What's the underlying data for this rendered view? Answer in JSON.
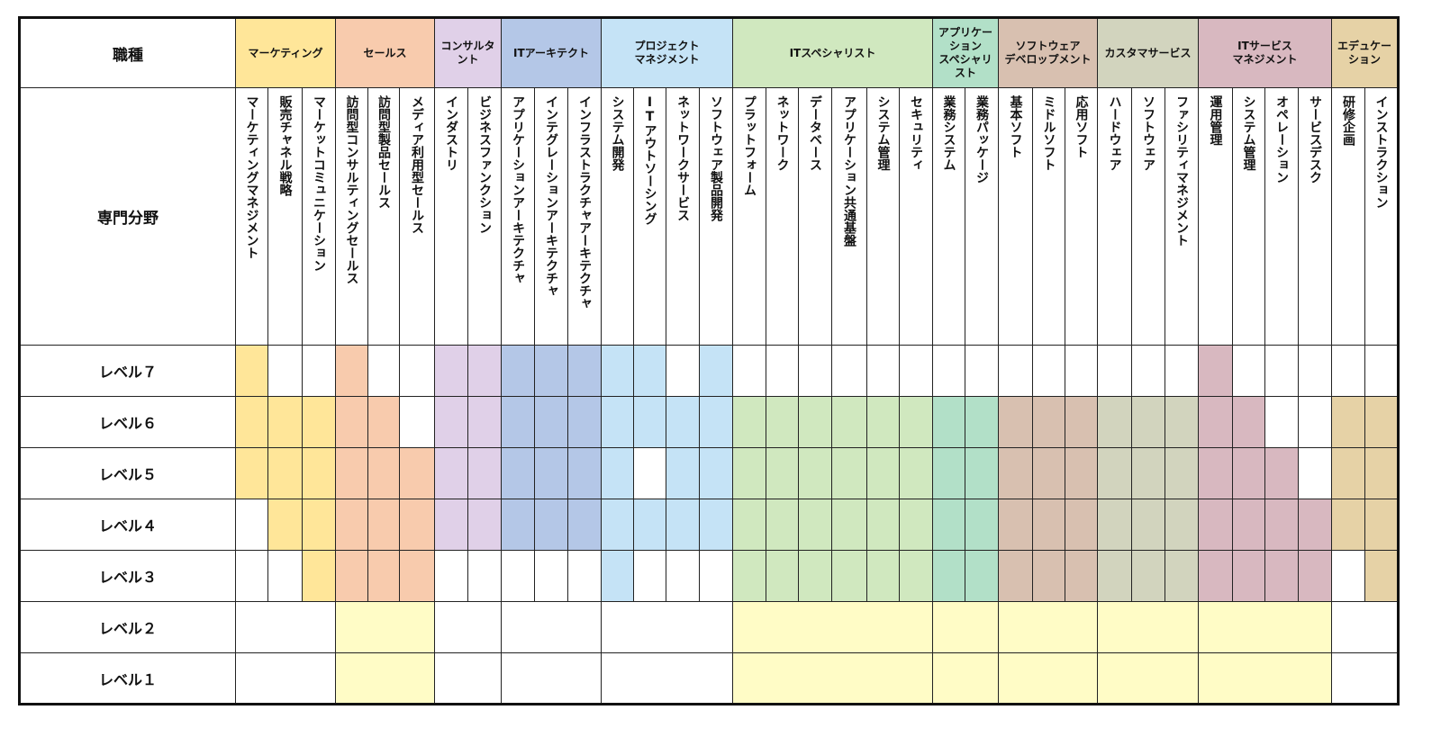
{
  "header": {
    "job_type_label": "職種",
    "field_label": "専門分野"
  },
  "categories": [
    {
      "label": "マーケティング",
      "span": 3,
      "color": "#FFE699"
    },
    {
      "label": "セールス",
      "span": 3,
      "color": "#F8CBAD"
    },
    {
      "label": "コンサルタ\nント",
      "span": 2,
      "color": "#E0D0E8"
    },
    {
      "label": "ITアーキテクト",
      "span": 3,
      "color": "#B4C7E7"
    },
    {
      "label": "プロジェクト\nマネジメント",
      "span": 4,
      "color": "#C5E3F6"
    },
    {
      "label": "ITスペシャリスト",
      "span": 6,
      "color": "#D0E8BF"
    },
    {
      "label": "アプリケー\nション\nスペシャリ\nスト",
      "span": 2,
      "color": "#B2E0C8"
    },
    {
      "label": "ソフトウェア\nデベロップメント",
      "span": 3,
      "color": "#D8C0B0"
    },
    {
      "label": "カスタマサービス",
      "span": 3,
      "color": "#D2D4BE"
    },
    {
      "label": "ITサービス\nマネジメント",
      "span": 4,
      "color": "#D8B8C0"
    },
    {
      "label": "エデュケー\nション",
      "span": 2,
      "color": "#E6D2A6"
    }
  ],
  "specialties": [
    "マーケティングマネジメント",
    "販売チャネル戦略",
    "マーケットコミュニケーション",
    "訪問型コンサルティングセールス",
    "訪問型製品セールス",
    "メディア利用型セールス",
    "インダストリ",
    "ビジネスファンクション",
    "アプリケーションアーキテクチャ",
    "インテグレーションアーキテクチャ",
    "インフラストラクチャアーキテクチャ",
    "システム開発",
    "ITアウトソーシング",
    "ネットワークサービス",
    "ソフトウェア製品開発",
    "プラットフォーム",
    "ネットワーク",
    "データベース",
    "アプリケーション共通基盤",
    "システム管理",
    "セキュリティ",
    "業務システム",
    "業務パッケージ",
    "基本ソフト",
    "ミドルソフト",
    "応用ソフト",
    "ハードウェア",
    "ソフトウェア",
    "ファシリティマネジメント",
    "運用管理",
    "システム管理",
    "オペレーション",
    "サービスデスク",
    "研修企画",
    "インストラクション"
  ],
  "lower_level_color": "#FFFCC6",
  "levels": [
    {
      "label": "レベル７",
      "cells": [
        1,
        0,
        0,
        1,
        0,
        0,
        1,
        1,
        1,
        1,
        1,
        1,
        1,
        0,
        1,
        0,
        0,
        0,
        0,
        0,
        0,
        0,
        0,
        0,
        0,
        0,
        0,
        0,
        0,
        1,
        0,
        0,
        0,
        0,
        0
      ]
    },
    {
      "label": "レベル６",
      "cells": [
        1,
        1,
        1,
        1,
        1,
        0,
        1,
        1,
        1,
        1,
        1,
        1,
        1,
        1,
        1,
        1,
        1,
        1,
        1,
        1,
        1,
        1,
        1,
        1,
        1,
        1,
        1,
        1,
        1,
        1,
        1,
        0,
        0,
        1,
        1
      ]
    },
    {
      "label": "レベル５",
      "cells": [
        1,
        1,
        1,
        1,
        1,
        1,
        1,
        1,
        1,
        1,
        1,
        1,
        0,
        1,
        1,
        1,
        1,
        1,
        1,
        1,
        1,
        1,
        1,
        1,
        1,
        1,
        1,
        1,
        1,
        1,
        1,
        1,
        0,
        1,
        1
      ]
    },
    {
      "label": "レベル４",
      "cells": [
        0,
        1,
        1,
        1,
        1,
        1,
        1,
        1,
        1,
        1,
        1,
        1,
        1,
        1,
        1,
        1,
        1,
        1,
        1,
        1,
        1,
        1,
        1,
        1,
        1,
        1,
        1,
        1,
        1,
        1,
        1,
        1,
        1,
        1,
        1
      ]
    },
    {
      "label": "レベル３",
      "cells": [
        0,
        0,
        1,
        1,
        1,
        1,
        0,
        0,
        0,
        0,
        0,
        1,
        0,
        0,
        0,
        1,
        1,
        1,
        1,
        1,
        1,
        1,
        1,
        1,
        1,
        1,
        1,
        1,
        1,
        1,
        1,
        1,
        1,
        0,
        1
      ]
    },
    {
      "label": "レベル２",
      "lower": [
        0,
        1,
        0,
        0,
        0,
        1,
        1,
        1,
        1,
        1,
        0
      ]
    },
    {
      "label": "レベル１",
      "lower": [
        0,
        1,
        0,
        0,
        0,
        1,
        1,
        1,
        1,
        1,
        0
      ]
    }
  ]
}
